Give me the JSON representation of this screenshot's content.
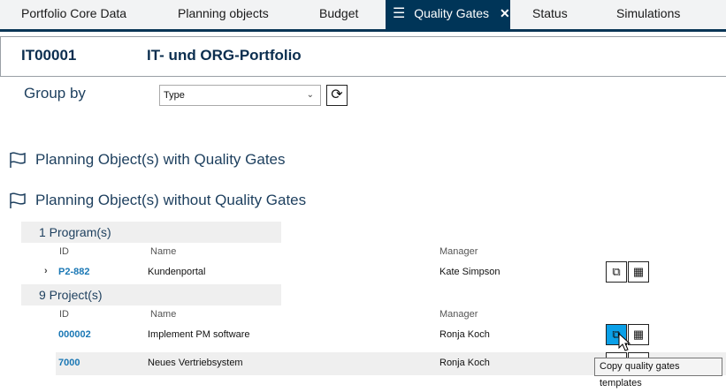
{
  "tabs": [
    {
      "label": "Portfolio Core Data"
    },
    {
      "label": "Planning objects"
    },
    {
      "label": "Budget"
    },
    {
      "label": "Quality Gates",
      "active": true
    },
    {
      "label": "Status"
    },
    {
      "label": "Simulations"
    }
  ],
  "header": {
    "id": "IT00001",
    "title": "IT- und ORG-Portfolio"
  },
  "group_by": {
    "label": "Group by",
    "value": "Type"
  },
  "sections": {
    "with": "Planning Object(s) with Quality Gates",
    "without": "Planning Object(s) without Quality Gates"
  },
  "columns": {
    "id": "ID",
    "name": "Name",
    "manager": "Manager"
  },
  "programs": {
    "label": "1 Program(s)",
    "rows": [
      {
        "id": "P2-882",
        "name": "Kundenportal",
        "manager": "Kate Simpson"
      }
    ]
  },
  "projects": {
    "label": "9 Project(s)",
    "rows": [
      {
        "id": "000002",
        "name": "Implement PM software",
        "manager": "Ronja Koch"
      },
      {
        "id": "7000",
        "name": "Neues Vertriebsystem",
        "manager": "Ronja Koch"
      }
    ]
  },
  "tooltip": "Copy quality gates templates",
  "colors": {
    "accent": "#003558",
    "highlight": "#0aa0e8",
    "link": "#1b78b5"
  }
}
